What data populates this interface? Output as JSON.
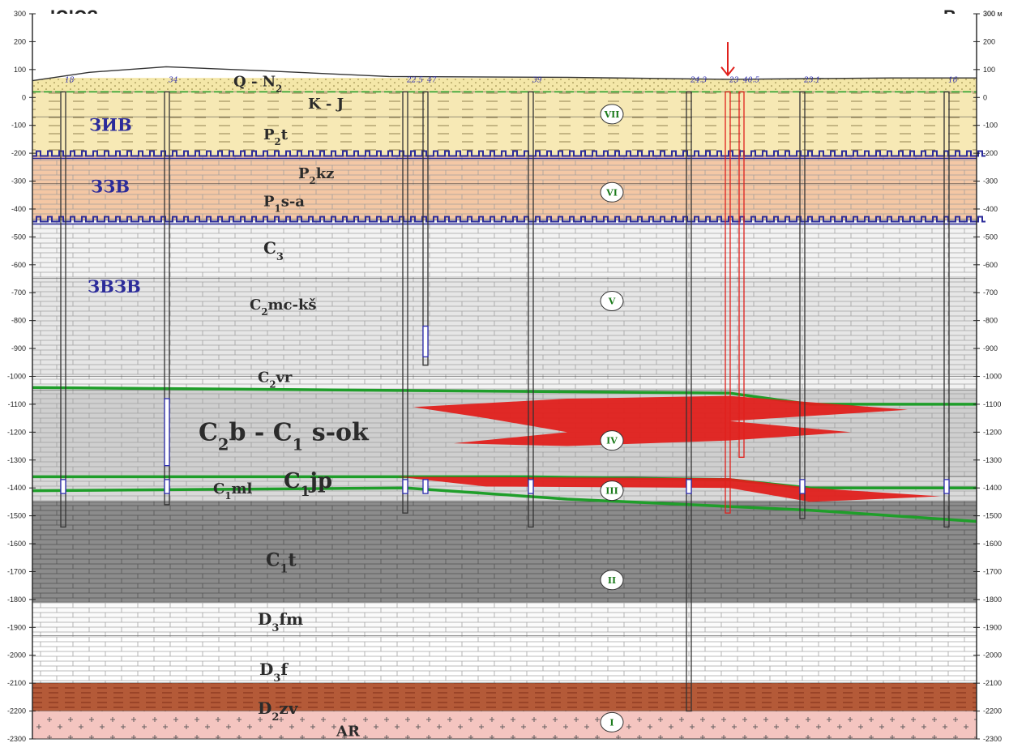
{
  "header": {
    "left_direction": "ЮЮЗ",
    "right_direction": "В"
  },
  "axis": {
    "unit": "м",
    "ticks": [
      300,
      200,
      100,
      0,
      -100,
      -200,
      -300,
      -400,
      -500,
      -600,
      -700,
      -800,
      -900,
      -1000,
      -1100,
      -1200,
      -1300,
      -1400,
      -1500,
      -1600,
      -1700,
      -1800,
      -1900,
      -2000,
      -2100,
      -2200,
      -2300
    ],
    "range": [
      300,
      -2300
    ]
  },
  "layers": [
    {
      "name": "Q-N2",
      "label": "Q - N",
      "sub": "2",
      "top": 70,
      "bottom": 20,
      "color": "#f4e7a8"
    },
    {
      "name": "K-J",
      "label": "K - J",
      "sub": "",
      "top": 20,
      "bottom": -70,
      "color": "#f6e8b4"
    },
    {
      "name": "P2t",
      "label": "P",
      "sub": "2",
      "suffix": "t",
      "top": -70,
      "bottom": -210,
      "color": "#f7e9b5"
    },
    {
      "name": "P2kz",
      "label": "P",
      "sub": "2",
      "suffix": "kz",
      "top": -210,
      "bottom": -310,
      "color": "#f4c8a6"
    },
    {
      "name": "P1s-a",
      "label": "P",
      "sub": "1",
      "suffix": "s-a",
      "top": -310,
      "bottom": -440,
      "color": "#f4c7a4"
    },
    {
      "name": "C3",
      "label": "C",
      "sub": "3",
      "suffix": "",
      "top": -440,
      "bottom": -650,
      "color": "#f3f3f3"
    },
    {
      "name": "C2mc-ks",
      "label": "C",
      "sub": "2",
      "suffix": "mc-kš",
      "top": -650,
      "bottom": -1000,
      "color": "#e6e6e6"
    },
    {
      "name": "C2vr",
      "label": "C",
      "sub": "2",
      "suffix": "vr",
      "top": -1000,
      "bottom": -1050,
      "color": "#f2f2f2"
    },
    {
      "name": "C2b-C1s-ok",
      "label": "C",
      "sub": "2",
      "suffix": "b - C",
      "sub2": "1",
      "suffix2": " s-ok",
      "top": -1050,
      "bottom": -1360,
      "color": "#cfcfcf"
    },
    {
      "name": "C1ml",
      "label": "C",
      "sub": "1",
      "suffix": "ml",
      "top": -1360,
      "bottom": -1450,
      "color": "#d9d9d9"
    },
    {
      "name": "C1t",
      "label": "C",
      "sub": "1",
      "suffix": "t",
      "top": -1450,
      "bottom": -1810,
      "color": "#8c8c8c"
    },
    {
      "name": "D3fm",
      "label": "D",
      "sub": "3",
      "suffix": "fm",
      "top": -1810,
      "bottom": -1930,
      "color": "#fbfbfb"
    },
    {
      "name": "D3f",
      "label": "D",
      "sub": "3",
      "suffix": "f",
      "top": -1930,
      "bottom": -2100,
      "color": "#ffffff"
    },
    {
      "name": "D2zv",
      "label": "D",
      "sub": "2",
      "suffix": "zv",
      "top": -2100,
      "bottom": -2200,
      "color": "#b45a38"
    },
    {
      "name": "AR",
      "label": "AR",
      "sub": "",
      "suffix": "",
      "top": -2200,
      "bottom": -2300,
      "color": "#f4c5c0"
    }
  ],
  "productive_strata": [
    {
      "label": "C",
      "sub": "2",
      "suffix": "b - C",
      "sub2": "1",
      "suffix2": " s-ok",
      "color": "#e0201c"
    },
    {
      "label": "C",
      "sub": "1",
      "suffix": "jp",
      "color": "#e0201c"
    }
  ],
  "complexes": [
    {
      "label": "ЗИВ"
    },
    {
      "label": "ЗЗВ"
    },
    {
      "label": "ЗВЗВ"
    }
  ],
  "units": [
    "VII",
    "VI",
    "V",
    "IV",
    "III",
    "II",
    "I"
  ],
  "wells": [
    "18",
    "34",
    "22.5",
    "47",
    "39",
    "24.3",
    "23",
    "40.5",
    "23.1",
    "16"
  ],
  "colors": {
    "unconformity": "#2b2b9a",
    "green_marker": "#1f9e2a",
    "productive": "#e0201c",
    "target_well": "#e0201c"
  }
}
